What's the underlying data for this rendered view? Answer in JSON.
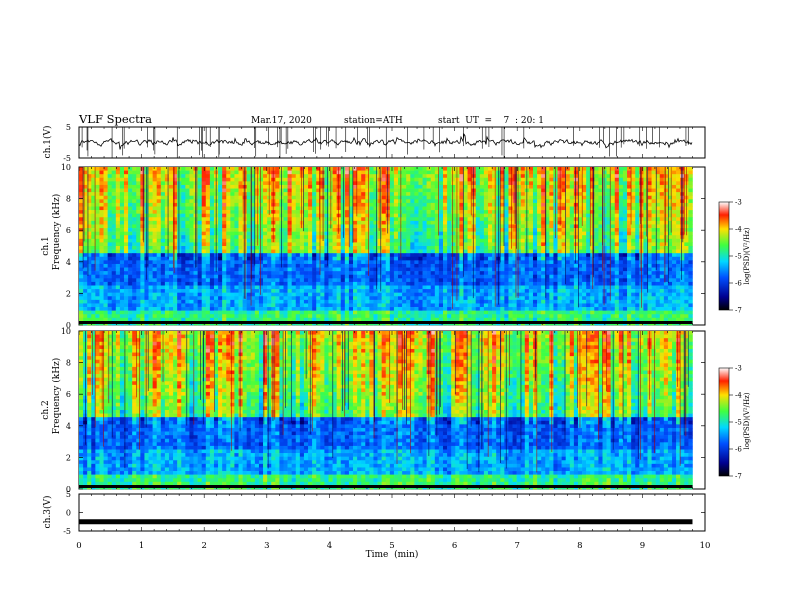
{
  "header": {
    "title": "VLF  Spectra",
    "date": "Mar.17, 2020",
    "station": "station=ATH",
    "start": "start  UT  =    7  : 20: 1"
  },
  "chart_data": [
    {
      "type": "line",
      "name": "ch1-waveform",
      "ylabel": "ch.1(V)",
      "xlim": [
        0,
        10
      ],
      "ylim": [
        -5,
        5
      ],
      "yticks": [
        {
          "v": 5,
          "label": "5"
        },
        {
          "v": -5,
          "label": "-5"
        }
      ],
      "trace_level": 0,
      "trace_end_min": 9.8,
      "color": "#000000"
    },
    {
      "type": "heatmap",
      "name": "ch1-spectrogram",
      "ylabel_top": "ch.1",
      "ylabel": "Frequency  (kHz)",
      "xlim": [
        0,
        10
      ],
      "ylim": [
        0,
        10
      ],
      "data_end_min": 9.8,
      "yticks": [
        {
          "v": 0,
          "label": "0"
        },
        {
          "v": 2,
          "label": "2"
        },
        {
          "v": 4,
          "label": "4"
        },
        {
          "v": 6,
          "label": "6"
        },
        {
          "v": 8,
          "label": "8"
        },
        {
          "v": 10,
          "label": "10"
        }
      ],
      "colorbar": {
        "label": "log(PSD)(V²/Hz)",
        "min": -7,
        "max": -3,
        "ticks": [
          "-3",
          "-4",
          "-5",
          "-6",
          "-7"
        ]
      }
    },
    {
      "type": "heatmap",
      "name": "ch2-spectrogram",
      "ylabel_top": "ch.2",
      "ylabel": "Frequency  (kHz)",
      "xlim": [
        0,
        10
      ],
      "ylim": [
        0,
        10
      ],
      "data_end_min": 9.8,
      "yticks": [
        {
          "v": 0,
          "label": "0"
        },
        {
          "v": 2,
          "label": "2"
        },
        {
          "v": 4,
          "label": "4"
        },
        {
          "v": 6,
          "label": "6"
        },
        {
          "v": 8,
          "label": "8"
        },
        {
          "v": 10,
          "label": "10"
        }
      ],
      "colorbar": {
        "label": "log(PSD)(V²/Hz)",
        "min": -7,
        "max": -3,
        "ticks": [
          "-3",
          "-4",
          "-5",
          "-6",
          "-7"
        ]
      }
    },
    {
      "type": "line",
      "name": "ch3-waveform",
      "ylabel": "ch.3(V)",
      "xlim": [
        0,
        10
      ],
      "ylim": [
        -5,
        5
      ],
      "yticks": [
        {
          "v": 5,
          "label": "5"
        },
        {
          "v": 0,
          "label": "0"
        },
        {
          "v": -5,
          "label": "-5"
        }
      ],
      "trace_level": -2.5,
      "trace_end_min": 9.8,
      "color": "#000000"
    }
  ],
  "xaxis": {
    "label": "Time  (min)",
    "ticks": [
      "0",
      "1",
      "2",
      "3",
      "4",
      "5",
      "6",
      "7",
      "8",
      "9",
      "10"
    ]
  }
}
